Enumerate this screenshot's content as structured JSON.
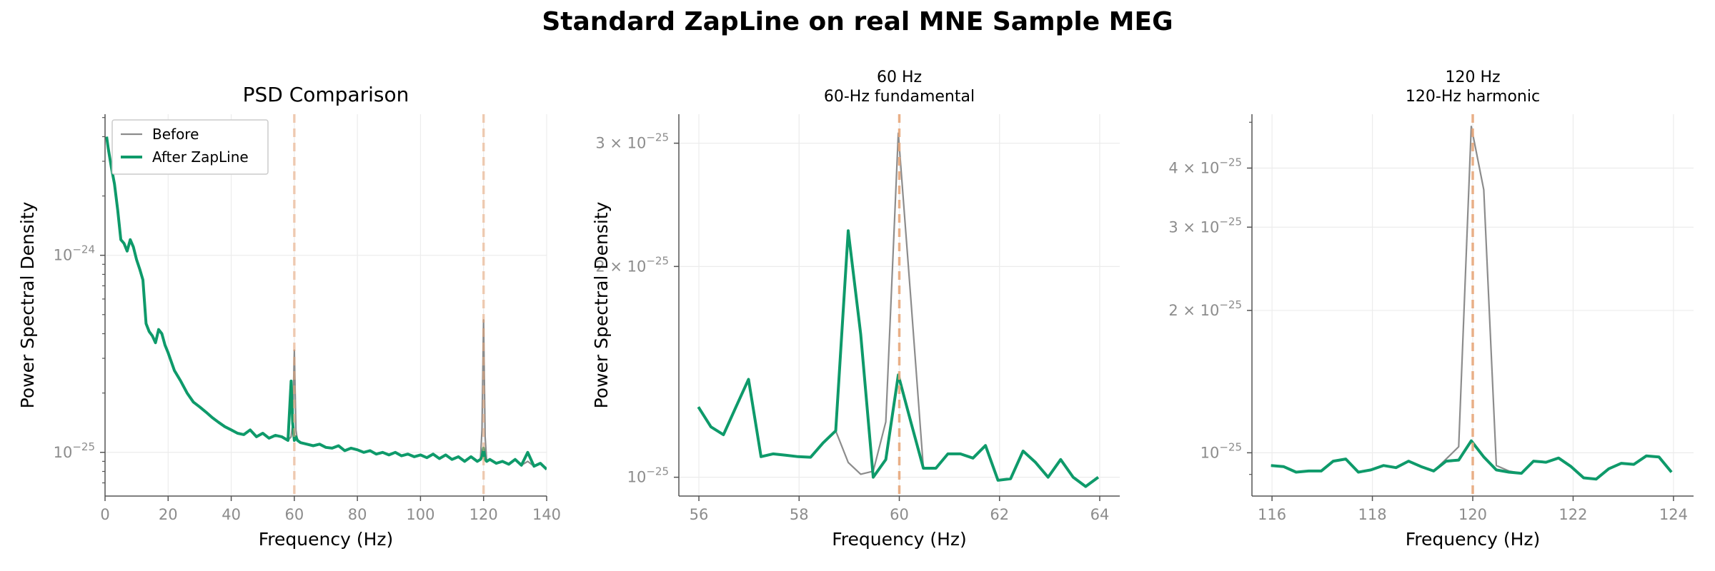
{
  "figure": {
    "title": "Standard ZapLine on real MNE Sample MEG"
  },
  "colors": {
    "before": "#8c8c8c",
    "after": "#0e9a6a",
    "line_marker": "#e8a87c",
    "grid": "#ececec",
    "axis": "#555555"
  },
  "chart_data": [
    {
      "type": "line",
      "title": "PSD Comparison",
      "subtitle": "",
      "xlabel": "Frequency (Hz)",
      "ylabel": "Power Spectral Density",
      "yscale": "log",
      "xlim": [
        0,
        140
      ],
      "ylim": [
        6e-26,
        5.2e-24
      ],
      "xticks": [
        0,
        20,
        40,
        60,
        80,
        100,
        120,
        140
      ],
      "xtick_labels": [
        "0",
        "20",
        "40",
        "60",
        "80",
        "100",
        "120",
        "140"
      ],
      "yticks": [
        1e-25,
        1e-24
      ],
      "ytick_labels": [
        [
          "10",
          "−25"
        ],
        [
          "10",
          "−24"
        ]
      ],
      "vlines": [
        60,
        120
      ],
      "grid": true,
      "legend": {
        "position": "top-left",
        "entries": [
          "Before",
          "After ZapLine"
        ]
      },
      "series": [
        {
          "name": "Before",
          "x": [
            0.5,
            1,
            2,
            3,
            4,
            5,
            6,
            7,
            8,
            9,
            10,
            11,
            12,
            13,
            14,
            15,
            16,
            17,
            18,
            19,
            20,
            22,
            24,
            26,
            28,
            30,
            32,
            34,
            36,
            38,
            40,
            42,
            44,
            46,
            48,
            50,
            52,
            54,
            56,
            58,
            59,
            59.5,
            60,
            60.5,
            61,
            62,
            64,
            66,
            68,
            70,
            72,
            74,
            76,
            78,
            80,
            82,
            84,
            86,
            88,
            90,
            92,
            94,
            96,
            98,
            100,
            102,
            104,
            106,
            108,
            110,
            112,
            114,
            116,
            118,
            119,
            119.5,
            120,
            120.5,
            121,
            122,
            124,
            126,
            128,
            130,
            132,
            134,
            136,
            138,
            140
          ],
          "y": [
            4e-24,
            3.5e-24,
            2.8e-24,
            2.3e-24,
            1.7e-24,
            1.2e-24,
            1.15e-24,
            1.05e-24,
            1.2e-24,
            1.1e-24,
            9.5e-25,
            8.5e-25,
            7.5e-25,
            4.5e-25,
            4.1e-25,
            3.9e-25,
            3.6e-25,
            4.2e-25,
            4e-25,
            3.5e-25,
            3.2e-25,
            2.6e-25,
            2.3e-25,
            2e-25,
            1.8e-25,
            1.7e-25,
            1.6e-25,
            1.5e-25,
            1.42e-25,
            1.35e-25,
            1.3e-25,
            1.25e-25,
            1.23e-25,
            1.3e-25,
            1.2e-25,
            1.25e-25,
            1.18e-25,
            1.22e-25,
            1.2e-25,
            1.15e-25,
            1.2e-25,
            1.4e-25,
            3.3e-25,
            1.3e-25,
            1.15e-25,
            1.12e-25,
            1.1e-25,
            1.08e-25,
            1.1e-25,
            1.06e-25,
            1.05e-25,
            1.08e-25,
            1.02e-25,
            1.05e-25,
            1.03e-25,
            1e-25,
            1.02e-25,
            9.8e-26,
            1e-25,
            9.7e-26,
            1e-25,
            9.6e-26,
            9.8e-26,
            9.5e-26,
            9.7e-26,
            9.4e-26,
            9.8e-26,
            9.3e-26,
            9.7e-26,
            9.2e-26,
            9.5e-26,
            9e-26,
            9.5e-26,
            9e-26,
            9.2e-26,
            1.3e-25,
            4.7e-25,
            1.2e-25,
            9e-26,
            9.2e-26,
            8.8e-26,
            9e-26,
            8.7e-26,
            9.2e-26,
            8.6e-26,
            9e-26,
            8.5e-26,
            8.8e-26,
            8.2e-26
          ]
        },
        {
          "name": "After ZapLine",
          "x": [
            0.5,
            1,
            2,
            3,
            4,
            5,
            6,
            7,
            8,
            9,
            10,
            11,
            12,
            13,
            14,
            15,
            16,
            17,
            18,
            19,
            20,
            22,
            24,
            26,
            28,
            30,
            32,
            34,
            36,
            38,
            40,
            42,
            44,
            46,
            48,
            50,
            52,
            54,
            56,
            58,
            59,
            59.5,
            60,
            60.5,
            61,
            62,
            64,
            66,
            68,
            70,
            72,
            74,
            76,
            78,
            80,
            82,
            84,
            86,
            88,
            90,
            92,
            94,
            96,
            98,
            100,
            102,
            104,
            106,
            108,
            110,
            112,
            114,
            116,
            118,
            119,
            119.5,
            120,
            120.5,
            121,
            122,
            124,
            126,
            128,
            130,
            132,
            134,
            136,
            138,
            140
          ],
          "y": [
            4e-24,
            3.5e-24,
            2.8e-24,
            2.3e-24,
            1.7e-24,
            1.2e-24,
            1.15e-24,
            1.05e-24,
            1.2e-24,
            1.1e-24,
            9.5e-25,
            8.5e-25,
            7.5e-25,
            4.5e-25,
            4.1e-25,
            3.9e-25,
            3.6e-25,
            4.2e-25,
            4e-25,
            3.5e-25,
            3.2e-25,
            2.6e-25,
            2.3e-25,
            2e-25,
            1.8e-25,
            1.7e-25,
            1.6e-25,
            1.5e-25,
            1.42e-25,
            1.35e-25,
            1.3e-25,
            1.25e-25,
            1.23e-25,
            1.3e-25,
            1.2e-25,
            1.25e-25,
            1.18e-25,
            1.22e-25,
            1.2e-25,
            1.15e-25,
            2.3e-25,
            1.4e-25,
            1.15e-25,
            1.2e-25,
            1.15e-25,
            1.12e-25,
            1.1e-25,
            1.08e-25,
            1.1e-25,
            1.06e-25,
            1.05e-25,
            1.08e-25,
            1.02e-25,
            1.05e-25,
            1.03e-25,
            1e-25,
            1.02e-25,
            9.8e-26,
            1e-25,
            9.7e-26,
            1e-25,
            9.6e-26,
            9.8e-26,
            9.5e-26,
            9.7e-26,
            9.4e-26,
            9.8e-26,
            9.3e-26,
            9.7e-26,
            9.2e-26,
            9.5e-26,
            9e-26,
            9.5e-26,
            9e-26,
            9.2e-26,
            9.5e-26,
            1.05e-25,
            9.2e-26,
            9e-26,
            9.2e-26,
            8.8e-26,
            9e-26,
            8.7e-26,
            9.2e-26,
            8.6e-26,
            1e-25,
            8.5e-26,
            8.8e-26,
            8.2e-26
          ]
        }
      ]
    },
    {
      "type": "line",
      "title": "60 Hz",
      "subtitle": "60-Hz fundamental",
      "xlabel": "Frequency (Hz)",
      "ylabel": "Power Spectral Density",
      "yscale": "log",
      "xlim": [
        55.6,
        64.4
      ],
      "ylim": [
        9.4e-26,
        3.3e-25
      ],
      "xticks": [
        56,
        58,
        60,
        62,
        64
      ],
      "xtick_labels": [
        "56",
        "58",
        "60",
        "62",
        "64"
      ],
      "yticks": [
        1e-25,
        2e-25,
        3e-25
      ],
      "ytick_labels": [
        [
          "10",
          "−25"
        ],
        [
          "2 × 10",
          "−25"
        ],
        [
          "3 × 10",
          "−25"
        ]
      ],
      "vlines": [
        60
      ],
      "grid": true,
      "series": [
        {
          "name": "Before",
          "x": [
            55.99,
            56.24,
            56.49,
            56.74,
            56.99,
            57.24,
            57.48,
            57.73,
            57.98,
            58.23,
            58.48,
            58.73,
            58.98,
            59.23,
            59.48,
            59.73,
            59.98,
            60.23,
            60.48,
            60.73,
            60.97,
            61.22,
            61.47,
            61.72,
            61.97,
            62.22,
            62.47,
            62.72,
            62.97,
            63.22,
            63.47,
            63.72,
            63.97
          ],
          "y": [
            1.26e-25,
            1.18e-25,
            1.15e-25,
            1.26e-25,
            1.38e-25,
            1.07e-25,
            1.08e-25,
            1.075e-25,
            1.07e-25,
            1.068e-25,
            1.12e-25,
            1.165e-25,
            1.05e-25,
            1.01e-25,
            1.02e-25,
            1.2e-25,
            3.1e-25,
            1.8e-25,
            1.03e-25,
            1.03e-25,
            1.08e-25,
            1.08e-25,
            1.065e-25,
            1.11e-25,
            9.9e-26,
            9.95e-26,
            1.09e-25,
            1.05e-25,
            1e-25,
            1.06e-25,
            1e-25,
            9.7e-26,
            1e-25
          ]
        },
        {
          "name": "After ZapLine",
          "x": [
            55.99,
            56.24,
            56.49,
            56.74,
            56.99,
            57.24,
            57.48,
            57.73,
            57.98,
            58.23,
            58.48,
            58.73,
            58.98,
            59.23,
            59.48,
            59.73,
            59.98,
            60.23,
            60.48,
            60.73,
            60.97,
            61.22,
            61.47,
            61.72,
            61.97,
            62.22,
            62.47,
            62.72,
            62.97,
            63.22,
            63.47,
            63.72,
            63.97
          ],
          "y": [
            1.26e-25,
            1.18e-25,
            1.15e-25,
            1.26e-25,
            1.38e-25,
            1.07e-25,
            1.08e-25,
            1.075e-25,
            1.07e-25,
            1.068e-25,
            1.12e-25,
            1.165e-25,
            2.25e-25,
            1.6e-25,
            1e-25,
            1.06e-25,
            1.4e-25,
            1.2e-25,
            1.03e-25,
            1.03e-25,
            1.08e-25,
            1.08e-25,
            1.065e-25,
            1.11e-25,
            9.9e-26,
            9.95e-26,
            1.09e-25,
            1.05e-25,
            1e-25,
            1.06e-25,
            1e-25,
            9.7e-26,
            1e-25
          ]
        }
      ]
    },
    {
      "type": "line",
      "title": "120 Hz",
      "subtitle": "120-Hz harmonic",
      "xlabel": "Frequency (Hz)",
      "ylabel": "",
      "yscale": "log",
      "xlim": [
        115.6,
        124.4
      ],
      "ylim": [
        8.1e-26,
        5.2e-25
      ],
      "xticks": [
        116,
        118,
        120,
        122,
        124
      ],
      "xtick_labels": [
        "116",
        "118",
        "120",
        "122",
        "124"
      ],
      "yticks": [
        1e-25,
        2e-25,
        3e-25,
        4e-25
      ],
      "ytick_labels": [
        [
          "10",
          "−25"
        ],
        [
          "2 × 10",
          "−25"
        ],
        [
          "3 × 10",
          "−25"
        ],
        [
          "4 × 10",
          "−25"
        ]
      ],
      "vlines": [
        120
      ],
      "grid": true,
      "series": [
        {
          "name": "Before",
          "x": [
            115.98,
            116.23,
            116.48,
            116.73,
            116.98,
            117.22,
            117.47,
            117.72,
            117.97,
            118.22,
            118.47,
            118.72,
            118.97,
            119.22,
            119.47,
            119.72,
            119.97,
            120.22,
            120.47,
            120.72,
            120.97,
            121.21,
            121.46,
            121.71,
            121.96,
            122.21,
            122.46,
            122.71,
            122.96,
            123.21,
            123.46,
            123.71,
            123.96
          ],
          "y": [
            9.4e-26,
            9.35e-26,
            9.1e-26,
            9.15e-26,
            9.15e-26,
            9.6e-26,
            9.7e-26,
            9.1e-26,
            9.2e-26,
            9.4e-26,
            9.3e-26,
            9.6e-26,
            9.35e-26,
            9.15e-26,
            9.7e-26,
            1.03e-25,
            4.9e-25,
            3.6e-25,
            9.4e-26,
            9.15e-26,
            9.05e-26,
            9.6e-26,
            9.55e-26,
            9.75e-26,
            9.35e-26,
            8.85e-26,
            8.8e-26,
            9.25e-26,
            9.5e-26,
            9.45e-26,
            9.85e-26,
            9.8e-26,
            9.1e-26
          ]
        },
        {
          "name": "After ZapLine",
          "x": [
            115.98,
            116.23,
            116.48,
            116.73,
            116.98,
            117.22,
            117.47,
            117.72,
            117.97,
            118.22,
            118.47,
            118.72,
            118.97,
            119.22,
            119.47,
            119.72,
            119.97,
            120.22,
            120.47,
            120.72,
            120.97,
            121.21,
            121.46,
            121.71,
            121.96,
            122.21,
            122.46,
            122.71,
            122.96,
            123.21,
            123.46,
            123.71,
            123.96
          ],
          "y": [
            9.4e-26,
            9.35e-26,
            9.1e-26,
            9.15e-26,
            9.15e-26,
            9.6e-26,
            9.7e-26,
            9.1e-26,
            9.2e-26,
            9.4e-26,
            9.3e-26,
            9.6e-26,
            9.35e-26,
            9.15e-26,
            9.6e-26,
            9.65e-26,
            1.06e-25,
            9.8e-26,
            9.2e-26,
            9.1e-26,
            9.05e-26,
            9.6e-26,
            9.55e-26,
            9.75e-26,
            9.35e-26,
            8.85e-26,
            8.8e-26,
            9.25e-26,
            9.5e-26,
            9.45e-26,
            9.85e-26,
            9.8e-26,
            9.1e-26
          ]
        }
      ]
    }
  ]
}
